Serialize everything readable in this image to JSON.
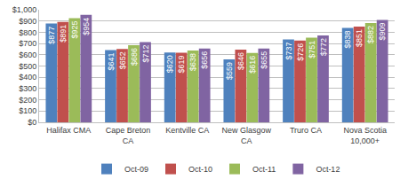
{
  "chart_data": {
    "type": "bar",
    "categories": [
      "Halifax CMA",
      "Cape Breton CA",
      "Kentville CA",
      "New Glasgow CA",
      "Truro CA",
      "Nova Scotia 10,000+"
    ],
    "series": [
      {
        "name": "Oct-09",
        "color": "#4f81bd",
        "values": [
          877,
          641,
          620,
          559,
          737,
          838
        ],
        "value_labels": [
          "$877",
          "$641",
          "$620",
          "$559",
          "$737",
          "$838"
        ]
      },
      {
        "name": "Oct-10",
        "color": "#c0504d",
        "values": [
          891,
          652,
          619,
          646,
          726,
          851
        ],
        "value_labels": [
          "$891",
          "$652",
          "$619",
          "$646",
          "$726",
          "$851"
        ]
      },
      {
        "name": "Oct-11",
        "color": "#9bbb59",
        "values": [
          925,
          686,
          638,
          616,
          751,
          882
        ],
        "value_labels": [
          "$925",
          "$686",
          "$638",
          "$616",
          "$751",
          "$882"
        ]
      },
      {
        "name": "Oct-12",
        "color": "#8064a2",
        "values": [
          954,
          712,
          656,
          655,
          772,
          909
        ],
        "value_labels": [
          "$954",
          "$712",
          "$656",
          "$655",
          "$772",
          "$909"
        ]
      }
    ],
    "ylim": [
      0,
      1000
    ],
    "yticks": [
      {
        "value": 0,
        "label": "$0"
      },
      {
        "value": 100,
        "label": "$100"
      },
      {
        "value": 200,
        "label": "$200"
      },
      {
        "value": 300,
        "label": "$300"
      },
      {
        "value": 400,
        "label": "$400"
      },
      {
        "value": 500,
        "label": "$500"
      },
      {
        "value": 600,
        "label": "$600"
      },
      {
        "value": 700,
        "label": "$700"
      },
      {
        "value": 800,
        "label": "$800"
      },
      {
        "value": 900,
        "label": "$900"
      },
      {
        "value": 1000,
        "label": "$1,000"
      }
    ],
    "grid": true,
    "legend": "bottom",
    "data_labels": true
  }
}
